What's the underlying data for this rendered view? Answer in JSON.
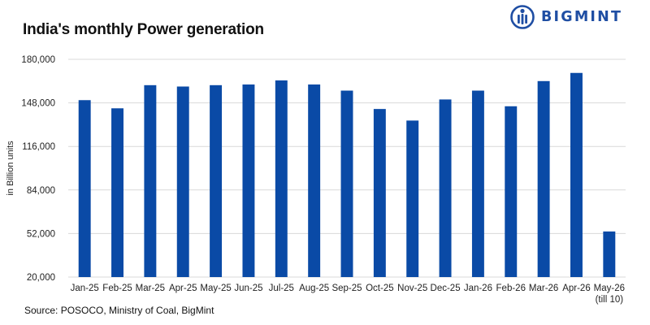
{
  "header": {
    "title": "India's monthly Power generation",
    "brand": "BIGMINT"
  },
  "footer": {
    "source": "Source: POSOCO, Ministry of Coal, BigMint"
  },
  "chart_data": {
    "type": "bar",
    "title": "India's monthly Power generation",
    "xlabel": "",
    "ylabel": "in Billion units",
    "ylim": [
      20000,
      180000
    ],
    "yticks": [
      20000,
      52000,
      84000,
      116000,
      148000,
      180000
    ],
    "ytick_labels": [
      "20,000",
      "52,000",
      "84,000",
      "116,000",
      "148,000",
      "180,000"
    ],
    "grid": true,
    "bar_color": "#0a4aa6",
    "categories": [
      "Jan-25",
      "Feb-25",
      "Mar-25",
      "Apr-25",
      "May-25",
      "Jun-25",
      "Jul-25",
      "Aug-25",
      "Sep-25",
      "Oct-25",
      "Nov-25",
      "Dec-25",
      "Jan-26",
      "Feb-26",
      "Mar-26",
      "Apr-26",
      "May-26"
    ],
    "category_notes": [
      "",
      "",
      "",
      "",
      "",
      "",
      "",
      "",
      "",
      "",
      "",
      "",
      "",
      "",
      "",
      "",
      "(till 10)"
    ],
    "values": [
      150000,
      144000,
      161000,
      160000,
      161000,
      161500,
      164500,
      161500,
      157000,
      143500,
      135000,
      150500,
      157000,
      145500,
      164000,
      170000,
      53500
    ]
  }
}
